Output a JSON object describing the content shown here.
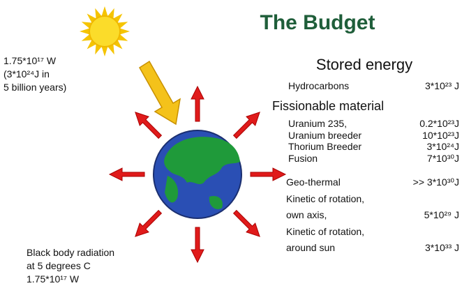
{
  "title": "The Budget",
  "sun_label": [
    "1.75*10¹⁷ W",
    "(3*10²⁴J in",
    "5 billion years)"
  ],
  "radiation_label": [
    "Black body radiation",
    "at 5 degrees C",
    "1.75*10¹⁷ W"
  ],
  "stored": {
    "heading": "Stored energy",
    "hydrocarbons": {
      "name": "Hydrocarbons",
      "value": "3*10²³ J"
    },
    "fission_heading": "Fissionable material",
    "fission": [
      {
        "name": "Uranium 235,",
        "value": "0.2*10²³J"
      },
      {
        "name": "Uranium breeder",
        "value": "10*10²³J"
      },
      {
        "name": "Thorium Breeder",
        "value": "3*10²⁴J"
      },
      {
        "name": "Fusion",
        "value": "7*10³⁰J"
      }
    ],
    "other": [
      {
        "name": [
          "Geo-thermal"
        ],
        "value": ">> 3*10³⁰J"
      },
      {
        "name": [
          "Kinetic of rotation,",
          "own axis,"
        ],
        "value": "5*10²⁹ J"
      },
      {
        "name": [
          "Kinetic of rotation,",
          "around sun"
        ],
        "value": "3*10³³ J"
      }
    ]
  }
}
